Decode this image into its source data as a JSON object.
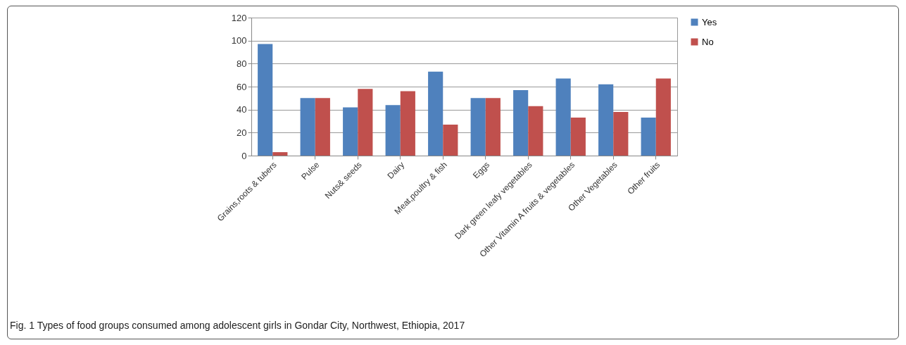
{
  "chart_data": {
    "type": "bar",
    "categories": [
      "Grains,roots & tubers",
      "Pulse",
      "Nuts& seeds",
      "Dairy",
      "Meat,poultry & fish",
      "Eggs",
      "Dark green leafy vegetables",
      "Other Vitamin A fruits & vegetables",
      "Other Vegetables",
      "Other fruits"
    ],
    "series": [
      {
        "name": "Yes",
        "color": "#4f81bd",
        "values": [
          97,
          50,
          42,
          44,
          73,
          50,
          57,
          67,
          62,
          33
        ]
      },
      {
        "name": "No",
        "color": "#c0504d",
        "values": [
          3,
          50,
          58,
          56,
          27,
          50,
          43,
          33,
          38,
          67
        ]
      }
    ],
    "ylim": [
      0,
      120
    ],
    "yticks": [
      0,
      20,
      40,
      60,
      80,
      100,
      120
    ],
    "grid": "y",
    "legend": "right",
    "annotations": [
      "Fig. 1 Types of food groups consumed among adolescent girls in Gondar City, Northwest, Ethiopia, 2017"
    ]
  }
}
